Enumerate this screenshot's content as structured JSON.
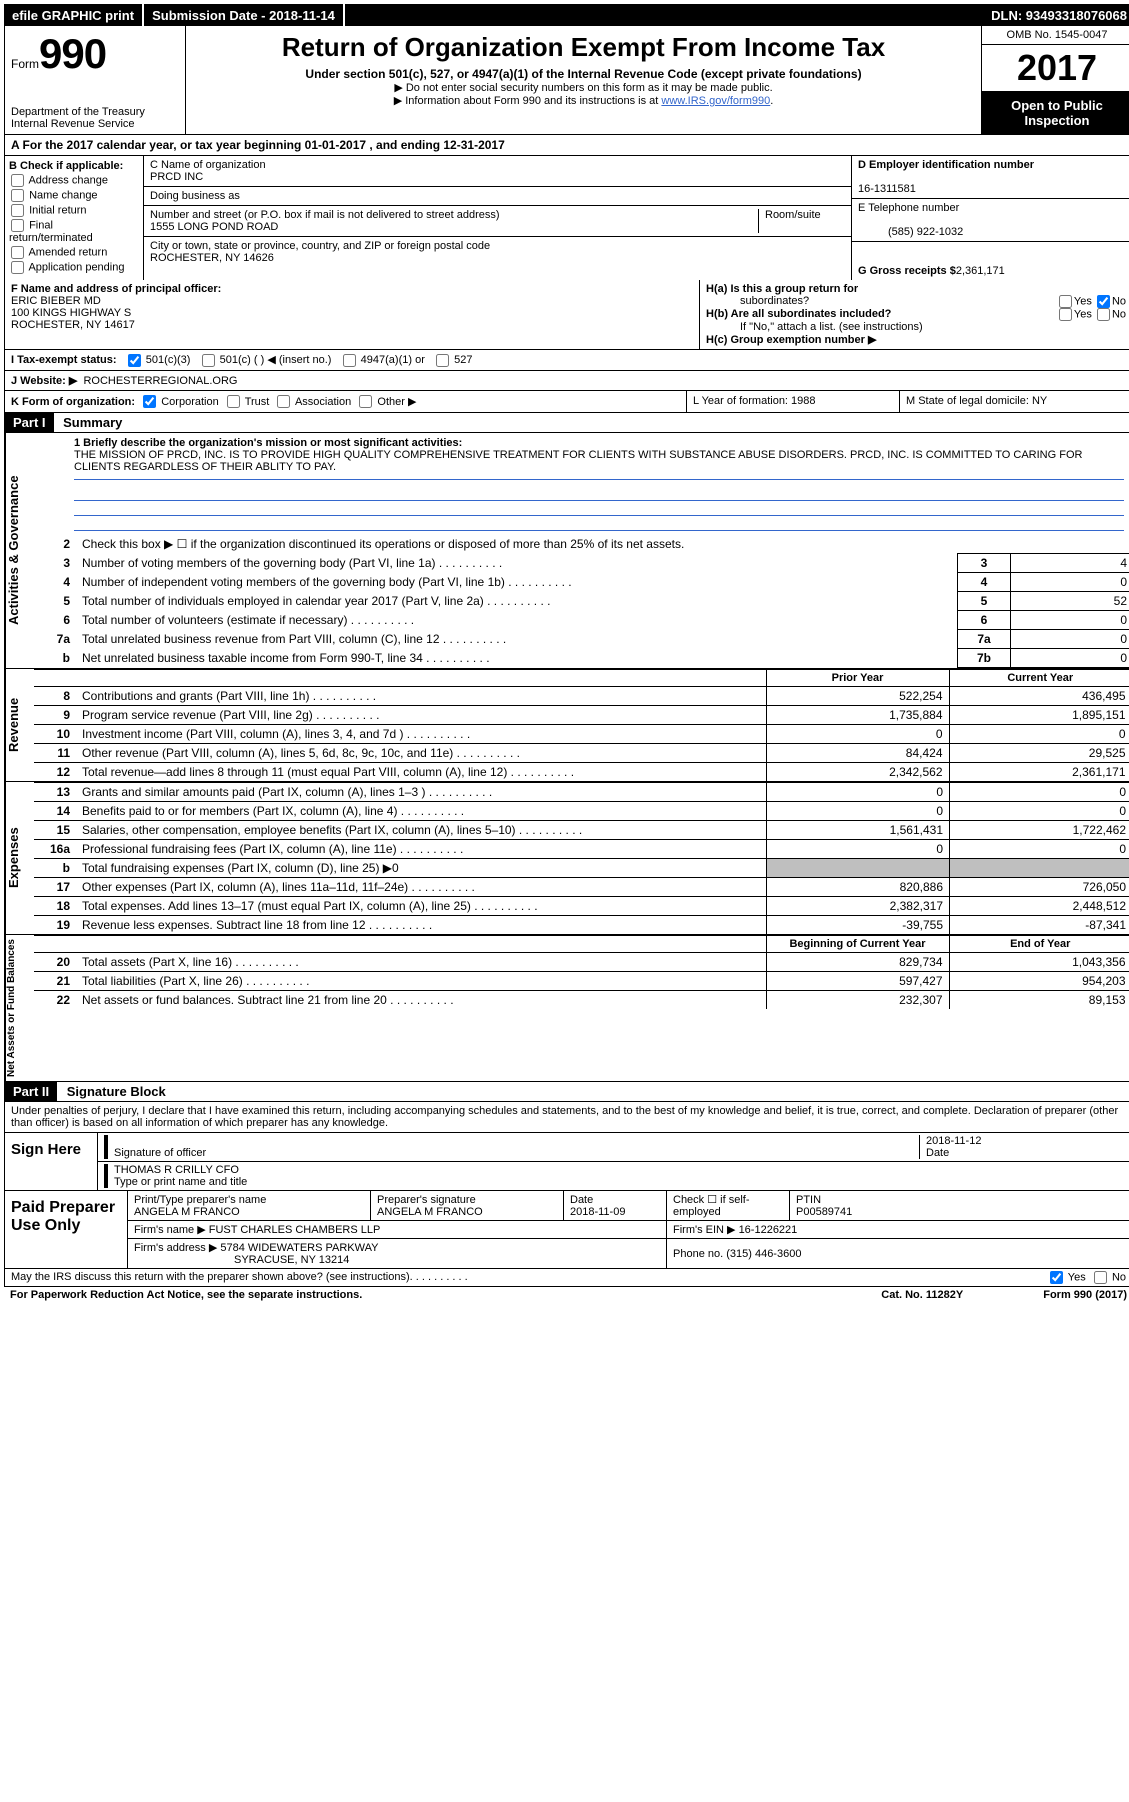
{
  "top": {
    "efile": "efile GRAPHIC print",
    "submission": "Submission Date - 2018-11-14",
    "dln": "DLN: 93493318076068"
  },
  "header": {
    "form_label": "Form",
    "form_number": "990",
    "dept": "Department of the Treasury",
    "irs": "Internal Revenue Service",
    "title": "Return of Organization Exempt From Income Tax",
    "sub": "Under section 501(c), 527, or 4947(a)(1) of the Internal Revenue Code (except private foundations)",
    "note1": "▶ Do not enter social security numbers on this form as it may be made public.",
    "note2_pre": "▶ Information about Form 990 and its instructions is at ",
    "note2_link": "www.IRS.gov/form990",
    "omb": "OMB No. 1545-0047",
    "year": "2017",
    "open1": "Open to Public",
    "open2": "Inspection"
  },
  "rowA": "A   For the 2017 calendar year, or tax year beginning 01-01-2017   , and ending 12-31-2017",
  "boxB": {
    "title": "B Check if applicable:",
    "items": [
      "Address change",
      "Name change",
      "Initial return",
      "Final return/terminated",
      "Amended return",
      "Application pending"
    ]
  },
  "boxC": {
    "name_lbl": "C Name of organization",
    "name": "PRCD INC",
    "dba_lbl": "Doing business as",
    "addr_lbl": "Number and street (or P.O. box if mail is not delivered to street address)",
    "room_lbl": "Room/suite",
    "addr": "1555 LONG POND ROAD",
    "city_lbl": "City or town, state or province, country, and ZIP or foreign postal code",
    "city": "ROCHESTER, NY  14626"
  },
  "boxD": {
    "ein_lbl": "D Employer identification number",
    "ein": "16-1311581",
    "tel_lbl": "E Telephone number",
    "tel": "(585) 922-1032",
    "gross_lbl": "G Gross receipts $",
    "gross": "2,361,171"
  },
  "boxF": {
    "lbl": "F Name and address of principal officer:",
    "name": "ERIC BIEBER MD",
    "addr1": "100 KINGS HIGHWAY S",
    "addr2": "ROCHESTER, NY  14617"
  },
  "boxH": {
    "ha": "H(a)  Is this a group return for",
    "ha2": "subordinates?",
    "hb": "H(b)  Are all subordinates included?",
    "hb_note": "If \"No,\" attach a list. (see instructions)",
    "hc": "H(c)  Group exemption number ▶"
  },
  "rowI": {
    "lbl": "I   Tax-exempt status:",
    "opts": [
      "501(c)(3)",
      "501(c) (   ) ◀ (insert no.)",
      "4947(a)(1) or",
      "527"
    ]
  },
  "rowJ": {
    "lbl": "J   Website: ▶",
    "val": "ROCHESTERREGIONAL.ORG"
  },
  "rowK": {
    "lbl": "K Form of organization:",
    "opts": [
      "Corporation",
      "Trust",
      "Association",
      "Other ▶"
    ],
    "l": "L Year of formation: 1988",
    "m": "M State of legal domicile: NY"
  },
  "part1": {
    "hdr": "Part I",
    "title": "Summary"
  },
  "mission": {
    "q1": "1  Briefly describe the organization's mission or most significant activities:",
    "text": "THE MISSION OF PRCD, INC. IS TO PROVIDE HIGH QUALITY COMPREHENSIVE TREATMENT FOR CLIENTS WITH SUBSTANCE ABUSE DISORDERS. PRCD, INC. IS COMMITTED TO CARING FOR CLIENTS REGARDLESS OF THEIR ABLITY TO PAY."
  },
  "gov": {
    "q2": "Check this box ▶ ☐  if the organization discontinued its operations or disposed of more than 25% of its net assets.",
    "rows": [
      {
        "n": "3",
        "lbl": "Number of voting members of the governing body (Part VI, line 1a)",
        "box": "3",
        "val": "4"
      },
      {
        "n": "4",
        "lbl": "Number of independent voting members of the governing body (Part VI, line 1b)",
        "box": "4",
        "val": "0"
      },
      {
        "n": "5",
        "lbl": "Total number of individuals employed in calendar year 2017 (Part V, line 2a)",
        "box": "5",
        "val": "52"
      },
      {
        "n": "6",
        "lbl": "Total number of volunteers (estimate if necessary)",
        "box": "6",
        "val": "0"
      },
      {
        "n": "7a",
        "lbl": "Total unrelated business revenue from Part VIII, column (C), line 12",
        "box": "7a",
        "val": "0"
      },
      {
        "n": "b",
        "lbl": "Net unrelated business taxable income from Form 990-T, line 34",
        "box": "7b",
        "val": "0"
      }
    ]
  },
  "fin_hdr": {
    "prior": "Prior Year",
    "curr": "Current Year"
  },
  "revenue": [
    {
      "n": "8",
      "lbl": "Contributions and grants (Part VIII, line 1h)",
      "p": "522,254",
      "c": "436,495"
    },
    {
      "n": "9",
      "lbl": "Program service revenue (Part VIII, line 2g)",
      "p": "1,735,884",
      "c": "1,895,151"
    },
    {
      "n": "10",
      "lbl": "Investment income (Part VIII, column (A), lines 3, 4, and 7d )",
      "p": "0",
      "c": "0"
    },
    {
      "n": "11",
      "lbl": "Other revenue (Part VIII, column (A), lines 5, 6d, 8c, 9c, 10c, and 11e)",
      "p": "84,424",
      "c": "29,525"
    },
    {
      "n": "12",
      "lbl": "Total revenue—add lines 8 through 11 (must equal Part VIII, column (A), line 12)",
      "p": "2,342,562",
      "c": "2,361,171"
    }
  ],
  "expenses": [
    {
      "n": "13",
      "lbl": "Grants and similar amounts paid (Part IX, column (A), lines 1–3 )",
      "p": "0",
      "c": "0"
    },
    {
      "n": "14",
      "lbl": "Benefits paid to or for members (Part IX, column (A), line 4)",
      "p": "0",
      "c": "0"
    },
    {
      "n": "15",
      "lbl": "Salaries, other compensation, employee benefits (Part IX, column (A), lines 5–10)",
      "p": "1,561,431",
      "c": "1,722,462"
    },
    {
      "n": "16a",
      "lbl": "Professional fundraising fees (Part IX, column (A), line 11e)",
      "p": "0",
      "c": "0"
    },
    {
      "n": "b",
      "lbl": "Total fundraising expenses (Part IX, column (D), line 25) ▶0",
      "p": "",
      "c": "",
      "shade": true
    },
    {
      "n": "17",
      "lbl": "Other expenses (Part IX, column (A), lines 11a–11d, 11f–24e)",
      "p": "820,886",
      "c": "726,050"
    },
    {
      "n": "18",
      "lbl": "Total expenses. Add lines 13–17 (must equal Part IX, column (A), line 25)",
      "p": "2,382,317",
      "c": "2,448,512"
    },
    {
      "n": "19",
      "lbl": "Revenue less expenses. Subtract line 18 from line 12",
      "p": "-39,755",
      "c": "-87,341"
    }
  ],
  "net_hdr": {
    "prior": "Beginning of Current Year",
    "curr": "End of Year"
  },
  "netassets": [
    {
      "n": "20",
      "lbl": "Total assets (Part X, line 16)",
      "p": "829,734",
      "c": "1,043,356"
    },
    {
      "n": "21",
      "lbl": "Total liabilities (Part X, line 26)",
      "p": "597,427",
      "c": "954,203"
    },
    {
      "n": "22",
      "lbl": "Net assets or fund balances. Subtract line 21 from line 20",
      "p": "232,307",
      "c": "89,153"
    }
  ],
  "side_labels": {
    "ag": "Activities & Governance",
    "rev": "Revenue",
    "exp": "Expenses",
    "net": "Net Assets or\nFund Balances"
  },
  "part2": {
    "hdr": "Part II",
    "title": "Signature Block"
  },
  "sig": {
    "decl": "Under penalties of perjury, I declare that I have examined this return, including accompanying schedules and statements, and to the best of my knowledge and belief, it is true, correct, and complete. Declaration of preparer (other than officer) is based on all information of which preparer has any knowledge.",
    "sign_here": "Sign Here",
    "sig_officer": "Signature of officer",
    "date_lbl": "Date",
    "date": "2018-11-12",
    "officer": "THOMAS R CRILLY CFO",
    "officer_lbl": "Type or print name and title"
  },
  "prep": {
    "title": "Paid Preparer Use Only",
    "name_lbl": "Print/Type preparer's name",
    "name": "ANGELA M FRANCO",
    "sig_lbl": "Preparer's signature",
    "sig": "ANGELA M FRANCO",
    "date_lbl": "Date",
    "date": "2018-11-09",
    "check_lbl": "Check ☐ if self-employed",
    "ptin_lbl": "PTIN",
    "ptin": "P00589741",
    "firm_lbl": "Firm's name      ▶",
    "firm": "FUST CHARLES CHAMBERS LLP",
    "ein_lbl": "Firm's EIN ▶",
    "ein": "16-1226221",
    "addr_lbl": "Firm's address ▶",
    "addr": "5784 WIDEWATERS PARKWAY",
    "addr2": "SYRACUSE, NY  13214",
    "phone_lbl": "Phone no.",
    "phone": "(315) 446-3600"
  },
  "footer": {
    "discuss": "May the IRS discuss this return with the preparer shown above? (see instructions)",
    "yes": "Yes",
    "no": "No",
    "paperwork": "For Paperwork Reduction Act Notice, see the separate instructions.",
    "cat": "Cat. No. 11282Y",
    "form": "Form 990 (2017)"
  }
}
